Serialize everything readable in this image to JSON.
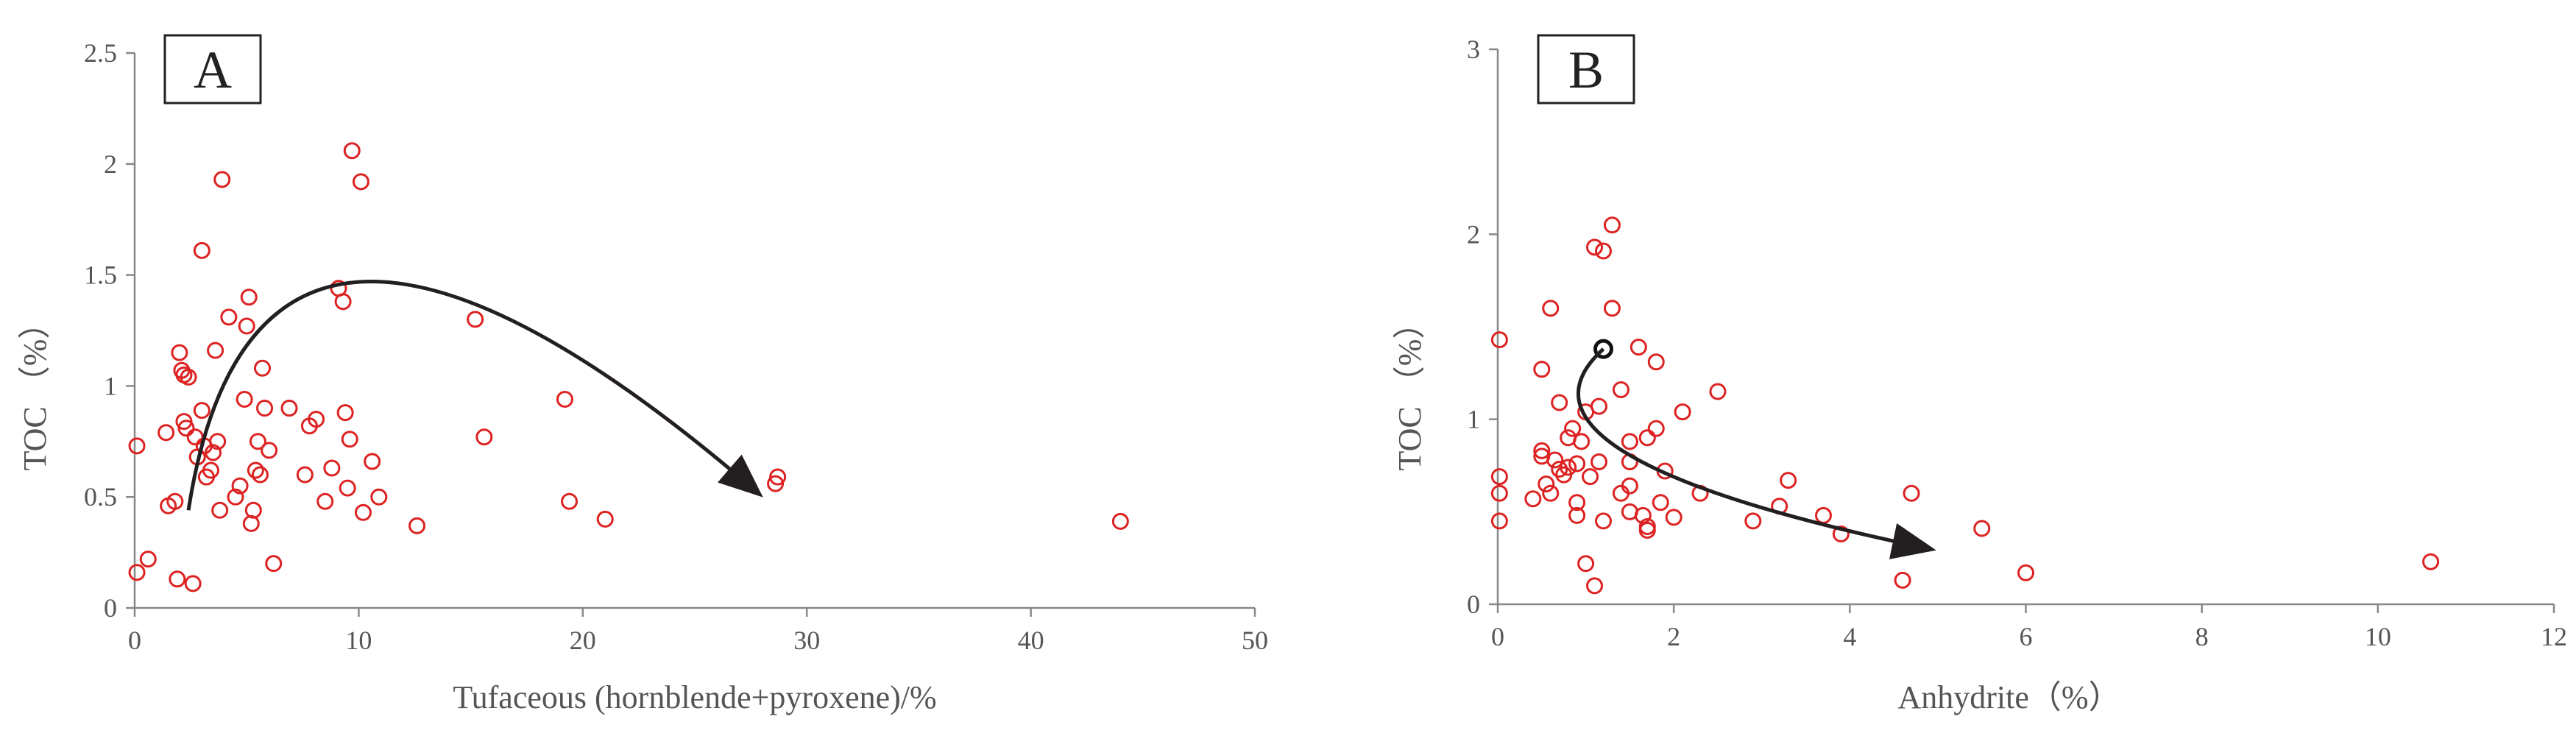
{
  "colors": {
    "point": "#dd2222",
    "axis": "#888888",
    "text": "#555555",
    "arrow": "#231f20",
    "panel_box": "#222222",
    "highlight_point": "#111111"
  },
  "chart_data": [
    {
      "type": "scatter",
      "panel_label": "A",
      "xlabel": "Tufaceous (hornblende+pyroxene)/%",
      "ylabel": "TOC （%）",
      "xlim": [
        0,
        50
      ],
      "ylim": [
        0,
        2.5
      ],
      "xticks": [
        0,
        10,
        20,
        30,
        40,
        50
      ],
      "yticks": [
        0,
        0.5,
        1,
        1.5,
        2,
        2.5
      ],
      "ytick_labels": [
        "0",
        "0.5",
        "1",
        "1.5",
        "2",
        "2.5"
      ],
      "grid": false,
      "points": [
        [
          0.1,
          0.73
        ],
        [
          0.1,
          0.16
        ],
        [
          0.6,
          0.22
        ],
        [
          1.4,
          0.79
        ],
        [
          1.5,
          0.46
        ],
        [
          1.8,
          0.48
        ],
        [
          1.9,
          0.13
        ],
        [
          2.0,
          1.15
        ],
        [
          2.1,
          1.07
        ],
        [
          2.2,
          1.05
        ],
        [
          2.2,
          0.84
        ],
        [
          2.3,
          0.81
        ],
        [
          2.4,
          1.04
        ],
        [
          2.6,
          0.11
        ],
        [
          2.7,
          0.77
        ],
        [
          2.8,
          0.68
        ],
        [
          3.0,
          0.89
        ],
        [
          3.0,
          1.61
        ],
        [
          3.1,
          0.73
        ],
        [
          3.2,
          0.59
        ],
        [
          3.4,
          0.62
        ],
        [
          3.5,
          0.7
        ],
        [
          3.6,
          1.16
        ],
        [
          3.7,
          0.75
        ],
        [
          3.8,
          0.44
        ],
        [
          3.9,
          1.93
        ],
        [
          4.2,
          1.31
        ],
        [
          4.5,
          0.5
        ],
        [
          4.7,
          0.55
        ],
        [
          4.9,
          0.94
        ],
        [
          5.0,
          1.27
        ],
        [
          5.1,
          1.4
        ],
        [
          5.2,
          0.38
        ],
        [
          5.3,
          0.44
        ],
        [
          5.4,
          0.62
        ],
        [
          5.5,
          0.75
        ],
        [
          5.6,
          0.6
        ],
        [
          5.7,
          1.08
        ],
        [
          5.8,
          0.9
        ],
        [
          6.0,
          0.71
        ],
        [
          6.2,
          0.2
        ],
        [
          6.9,
          0.9
        ],
        [
          7.6,
          0.6
        ],
        [
          7.8,
          0.82
        ],
        [
          8.1,
          0.85
        ],
        [
          8.5,
          0.48
        ],
        [
          8.8,
          0.63
        ],
        [
          9.1,
          1.44
        ],
        [
          9.3,
          1.38
        ],
        [
          9.4,
          0.88
        ],
        [
          9.5,
          0.54
        ],
        [
          9.6,
          0.76
        ],
        [
          9.7,
          2.06
        ],
        [
          10.1,
          1.92
        ],
        [
          10.2,
          0.43
        ],
        [
          10.6,
          0.66
        ],
        [
          10.9,
          0.5
        ],
        [
          12.6,
          0.37
        ],
        [
          15.2,
          1.3
        ],
        [
          15.6,
          0.77
        ],
        [
          19.2,
          0.94
        ],
        [
          19.4,
          0.48
        ],
        [
          21.0,
          0.4
        ],
        [
          28.6,
          0.56
        ],
        [
          28.7,
          0.59
        ],
        [
          44.0,
          0.39
        ]
      ],
      "trend_arrow": [
        [
          2.4,
          0.44
        ],
        [
          10.3,
          1.47
        ],
        [
          27.8,
          0.52
        ]
      ]
    },
    {
      "type": "scatter",
      "panel_label": "B",
      "xlabel": "Anhydrite（%）",
      "ylabel": "TOC （%）",
      "xlim": [
        0,
        12
      ],
      "ylim": [
        0,
        3
      ],
      "xticks": [
        0,
        2,
        4,
        6,
        8,
        10,
        12
      ],
      "yticks": [
        0,
        1,
        2,
        3
      ],
      "ytick_labels": [
        "0",
        "1",
        "2",
        "3"
      ],
      "grid": false,
      "points": [
        [
          0.02,
          1.43
        ],
        [
          0.02,
          0.69
        ],
        [
          0.02,
          0.6
        ],
        [
          0.02,
          0.45
        ],
        [
          0.4,
          0.57
        ],
        [
          0.5,
          1.27
        ],
        [
          0.5,
          0.83
        ],
        [
          0.5,
          0.8
        ],
        [
          0.55,
          0.65
        ],
        [
          0.6,
          0.6
        ],
        [
          0.6,
          1.6
        ],
        [
          0.65,
          0.78
        ],
        [
          0.7,
          1.09
        ],
        [
          0.7,
          0.73
        ],
        [
          0.75,
          0.7
        ],
        [
          0.8,
          0.74
        ],
        [
          0.8,
          0.9
        ],
        [
          0.85,
          0.95
        ],
        [
          0.9,
          0.55
        ],
        [
          0.9,
          0.48
        ],
        [
          0.9,
          0.76
        ],
        [
          0.95,
          0.88
        ],
        [
          1.0,
          1.04
        ],
        [
          1.0,
          0.22
        ],
        [
          1.05,
          0.69
        ],
        [
          1.1,
          0.1
        ],
        [
          1.1,
          1.93
        ],
        [
          1.15,
          0.77
        ],
        [
          1.15,
          1.07
        ],
        [
          1.2,
          1.91
        ],
        [
          1.2,
          0.45
        ],
        [
          1.3,
          1.6
        ],
        [
          1.3,
          2.05
        ],
        [
          1.4,
          1.16
        ],
        [
          1.4,
          0.6
        ],
        [
          1.5,
          0.5
        ],
        [
          1.5,
          0.64
        ],
        [
          1.5,
          0.88
        ],
        [
          1.5,
          0.77
        ],
        [
          1.6,
          1.39
        ],
        [
          1.65,
          0.48
        ],
        [
          1.7,
          0.4
        ],
        [
          1.7,
          0.42
        ],
        [
          1.7,
          0.9
        ],
        [
          1.8,
          0.95
        ],
        [
          1.8,
          1.31
        ],
        [
          1.85,
          0.55
        ],
        [
          1.9,
          0.72
        ],
        [
          2.0,
          0.47
        ],
        [
          2.1,
          1.04
        ],
        [
          2.3,
          0.6
        ],
        [
          2.5,
          1.15
        ],
        [
          2.9,
          0.45
        ],
        [
          3.2,
          0.53
        ],
        [
          3.3,
          0.67
        ],
        [
          3.7,
          0.48
        ],
        [
          3.9,
          0.38
        ],
        [
          4.6,
          0.13
        ],
        [
          4.7,
          0.6
        ],
        [
          5.5,
          0.41
        ],
        [
          6.0,
          0.17
        ],
        [
          10.6,
          0.23
        ]
      ],
      "highlight_point": [
        1.2,
        1.38
      ],
      "trend_arrow": [
        [
          1.2,
          1.38
        ],
        [
          1.45,
          0.82
        ],
        [
          4.9,
          0.3
        ]
      ]
    }
  ]
}
